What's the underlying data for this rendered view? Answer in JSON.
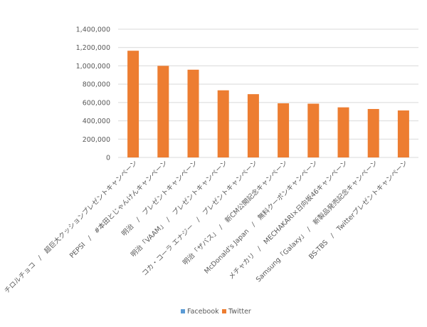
{
  "chart_data": {
    "type": "bar",
    "title": "",
    "xlabel": "",
    "ylabel": "",
    "ylim": [
      0,
      1400000
    ],
    "yticks": [
      "0",
      "200,000",
      "400,000",
      "600,000",
      "800,000",
      "1,000,000",
      "1,200,000",
      "1,400,000"
    ],
    "grid": true,
    "legend_position": "bottom",
    "categories": [
      "チロルチョコ　/　超巨大クッションプレゼントキャンペーン",
      "PEPSI　/　#本田とじゃんけんキャンペーン",
      "明治　/　プレゼントキャンペーン",
      "明治「VAAM」　/　プレゼントキャンペーン",
      "コカ・コーラ エナジー　/　プレゼントキャンペーン",
      "明治「ザバス」　/　新CM公開記念キャンペーン",
      "McDonald's Japan　/　無料クーポンキャンペーン",
      "メチャカリ　/　MECHAKARI×日向坂46キャンペーン",
      "Samsung「Galaxy」　/　新製品発売記念キャンペーン",
      "BS-TBS　/　Twitterプレゼントキャンペーン"
    ],
    "series": [
      {
        "name": "Facebook",
        "color": "#5B9BD5",
        "values": [
          0,
          0,
          0,
          0,
          0,
          0,
          0,
          0,
          0,
          0
        ]
      },
      {
        "name": "Twitter",
        "color": "#ED7D31",
        "values": [
          1165000,
          1000000,
          958000,
          733000,
          691000,
          591000,
          587000,
          547000,
          529000,
          513000
        ]
      }
    ]
  }
}
